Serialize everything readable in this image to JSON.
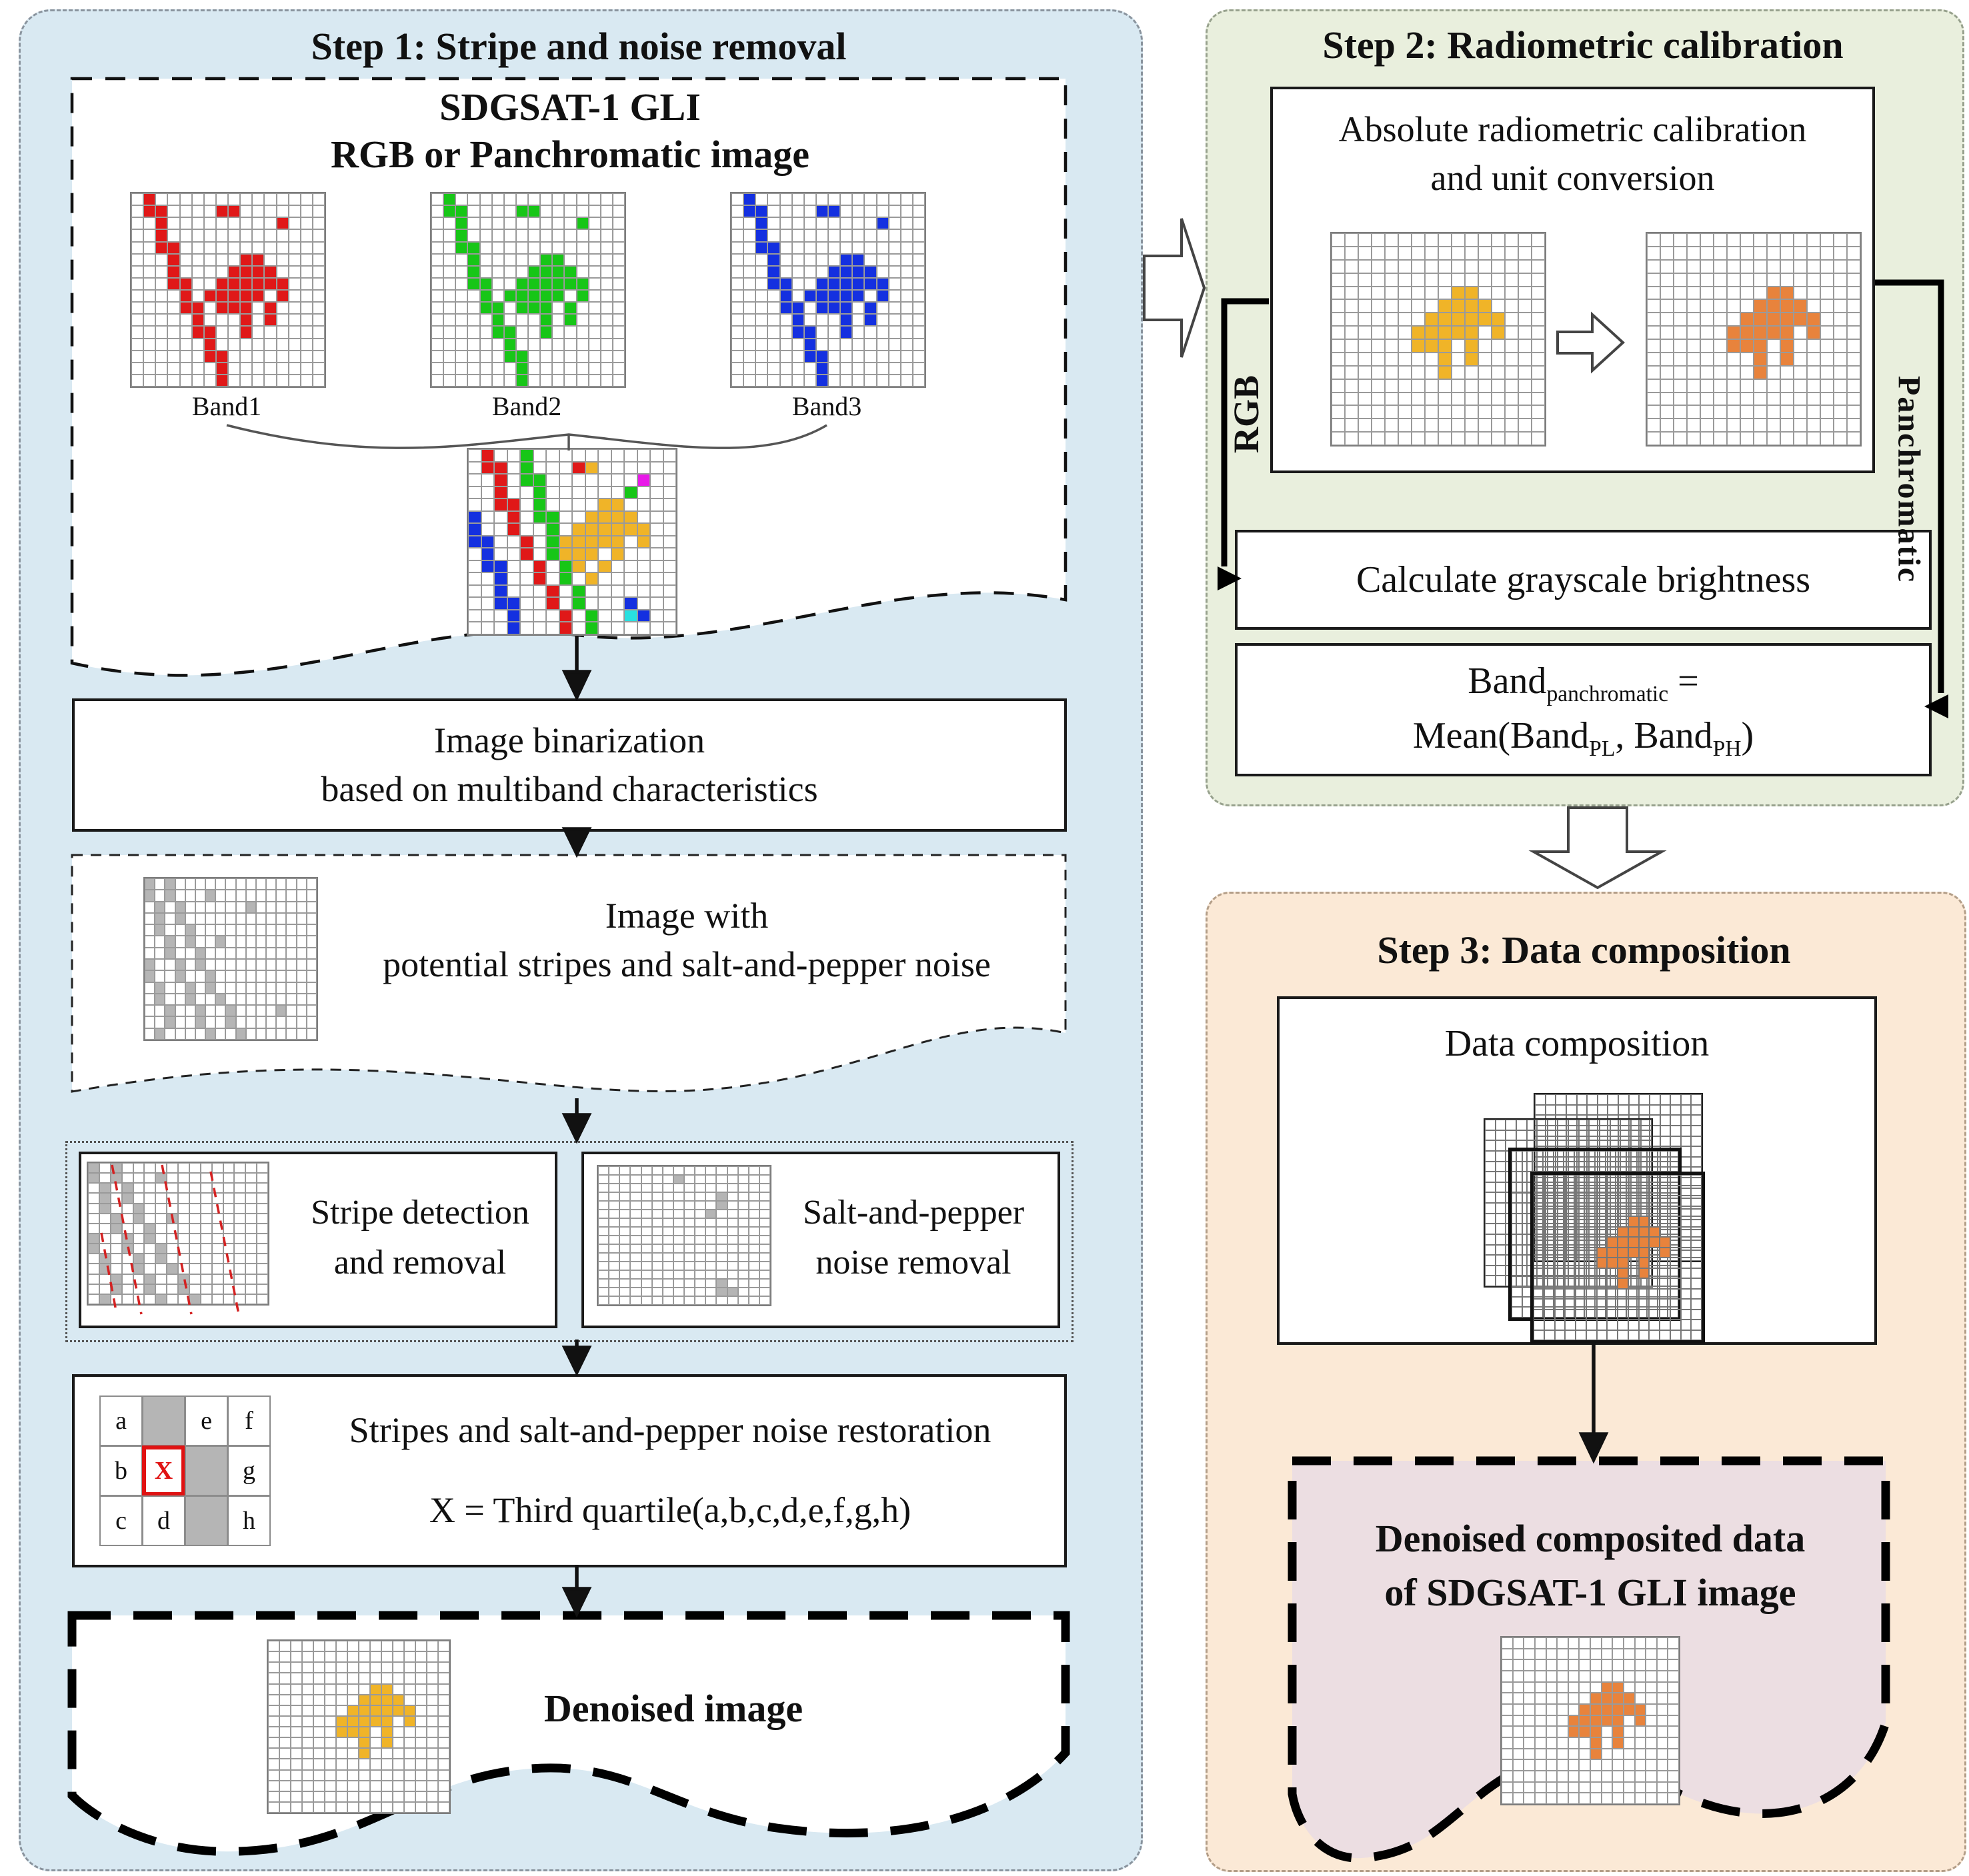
{
  "colors": {
    "step1_bg": "#d9e9f2",
    "step2_bg": "#e9efdd",
    "step3_bg": "#fbe9d6",
    "result_bg": "#ecdee2",
    "red": "#e01818",
    "green": "#17c617",
    "blue": "#1430e0",
    "gold": "#f0b428",
    "orange": "#e8833c",
    "gray": "#b5b5b5"
  },
  "palette": {
    "R": "#e01818",
    "G": "#17c617",
    "B": "#1430e0",
    "Y": "#f0b428",
    "O": "#e8833c",
    "M": "#e818e8",
    "C": "#28e0e0",
    "S": "#b5b5b5"
  },
  "step1": {
    "title": "Step 1: Stripe and noise removal",
    "input": {
      "title1": "SDGSAT-1 GLI",
      "title2": "RGB or  Panchromatic image",
      "band_labels": [
        "Band1",
        "Band2",
        "Band3"
      ]
    },
    "binarization": {
      "line1": "Image binarization",
      "line2": "based on multiband characteristics"
    },
    "noisy": {
      "line1": "Image with",
      "line2": "potential stripes and salt-and-pepper noise"
    },
    "stripe_box": {
      "line1": "Stripe detection",
      "line2": "and removal"
    },
    "salt_box": {
      "line1": "Salt-and-pepper",
      "line2": "noise removal"
    },
    "restore": {
      "line1": "Stripes and salt-and-pepper noise restoration",
      "line2": "X = Third quartile(a,b,c,d,e,f,g,h)",
      "kernel": [
        [
          {
            "t": "a"
          },
          {
            "t": "",
            "gray": 1
          },
          {
            "t": "e"
          },
          {
            "t": "f"
          }
        ],
        [
          {
            "t": "b"
          },
          {
            "t": "X",
            "red": 1
          },
          {
            "t": "",
            "gray": 1
          },
          {
            "t": "g"
          }
        ],
        [
          {
            "t": "c"
          },
          {
            "t": "d"
          },
          {
            "t": "",
            "gray": 1
          },
          {
            "t": "h"
          }
        ]
      ]
    },
    "denoised": {
      "label": "Denoised image"
    }
  },
  "step2": {
    "title": "Step 2: Radiometric calibration",
    "box1": {
      "line1": "Absolute radiometric calibration",
      "line2": "and unit conversion"
    },
    "rgb_label": "RGB",
    "panchromatic_label": "Panchromatic",
    "box2": {
      "label": "Calculate grayscale brightness"
    },
    "box3": {
      "l1a": "Band",
      "l1sub": "panchromatic",
      "l1b": " =",
      "l2a": "Mean(Band",
      "l2sub1": "PL",
      "l2b": ", Band",
      "l2sub2": "PH",
      "l2c": ")"
    }
  },
  "step3": {
    "title": "Step 3: Data composition",
    "box1": {
      "label": "Data composition"
    },
    "result": {
      "line1": "Denoised composited data",
      "line2": "of SDGSAT-1 GLI image"
    }
  },
  "grids": {
    "band": [
      ".#..............",
      ".##....##.......",
      "..#.........#...",
      "..#.............",
      "..##............",
      "...#.....##.....",
      "...#....####....",
      "...##..######...",
      "....#.#####.#...",
      "....##.###.#....",
      ".....#...#.#....",
      ".....##..#......",
      "......#.........",
      "......##........",
      ".......#........",
      ".......#........"
    ],
    "combined": [
      ".R..G...........",
      ".RR.G...RY......",
      "..R.GG.......M..",
      "..R..G......G...",
      "..RR.G....YY....",
      "B..R.GG..YYYY...",
      "B..R..G.YYYYYY..",
      "BB..R.GYYYYY.Y..",
      ".B..R.GYYY.Y....",
      ".BB..R.GY.Y.....",
      "..B..R.G.Y......",
      "..B...R.G.......",
      "..BB..R.G...B...",
      "...B...R.G..CB..",
      "...B...R.G......"
    ],
    "noisy": [
      "S.S..............",
      "S.S...S..........",
      ".S.S......S......",
      ".S.S.............",
      ".S..S............",
      "..S.S..S.........",
      "..S..S...........",
      "S..S.S...........",
      "S..S..S..........",
      ".S..S.S..........",
      ".S..S..S.........",
      "..S..S..S....S...",
      "..S..S..S........",
      ".S....S..S......."
    ],
    "stripes": [
      "S.S.............",
      "S.S...S.........",
      ".S.S............",
      ".S.S............",
      ".S..S...........",
      "..S.S..S........",
      "..S..S..........",
      "S..S.S..........",
      "S..S..S.........",
      ".S..S.S.........",
      ".S..S..S........",
      "..S..S..S.......",
      "..S..S..S.......",
      ".S....S..S......"
    ],
    "salt": [
      "................",
      ".......S........",
      "................",
      "...........S....",
      "...........S....",
      "..........S.....",
      "................",
      "................",
      "................",
      "................",
      "................",
      "................",
      "................",
      "...........S....",
      "...........SS...",
      "................"
    ],
    "blob16": [
      "................",
      "................",
      "................",
      "................",
      ".........##.....",
      "........####....",
      ".......######...",
      "......#####.#...",
      "......###.#.....",
      "........#.#.....",
      "........#.......",
      "................",
      "................",
      "................",
      "................",
      "................"
    ],
    "blob15": [
      "................",
      "................",
      "................",
      "................",
      ".........##.....",
      "........####....",
      ".......######...",
      "......#####.#...",
      "......###.#.....",
      "........#.#.....",
      "........#.......",
      "................",
      "................",
      "................",
      "................"
    ],
    "empty16": [
      "................",
      "................",
      "................",
      "................",
      "................",
      "................",
      "................",
      "................",
      "................",
      "................",
      "................",
      "................",
      "................",
      "................",
      "................",
      "................"
    ]
  }
}
